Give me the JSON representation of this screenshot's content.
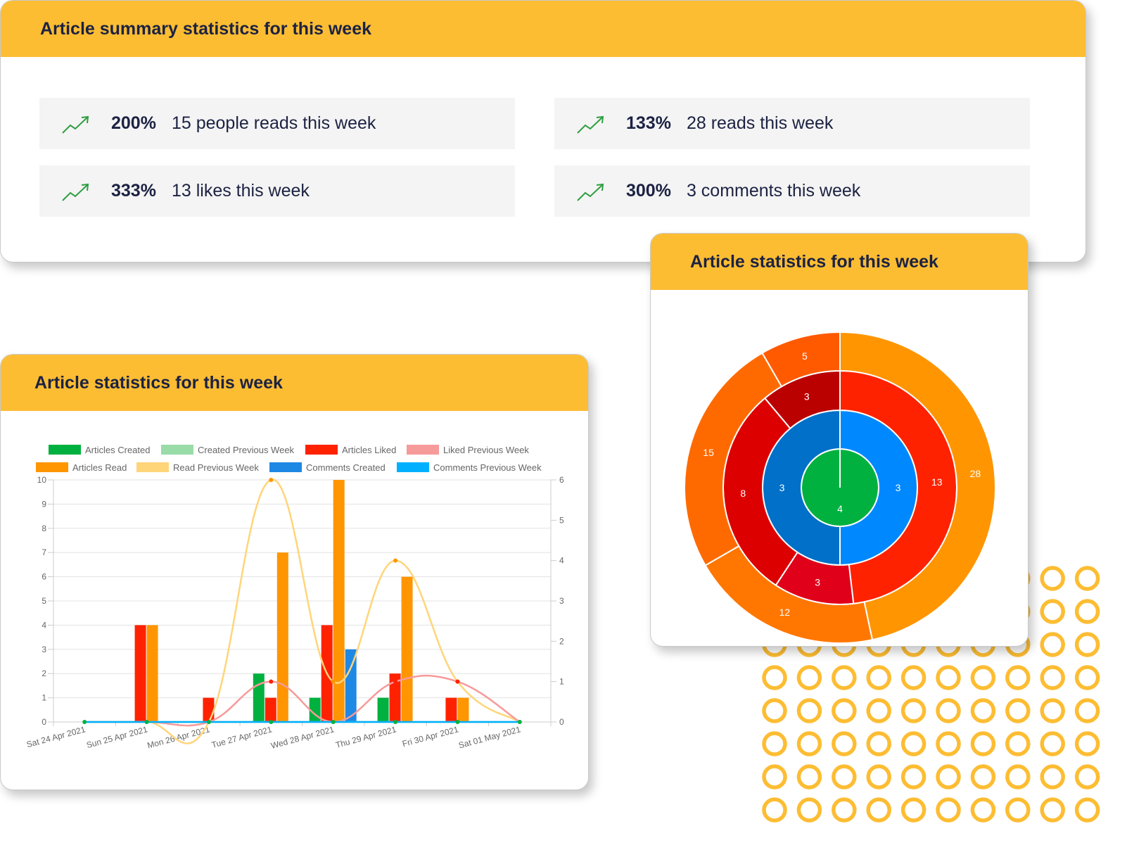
{
  "summary": {
    "title": "Article summary statistics for this week",
    "stats": [
      {
        "pct": "200%",
        "text": "15 people reads this week",
        "icon": "trend-up-icon"
      },
      {
        "pct": "133%",
        "text": "28 reads this week",
        "icon": "trend-up-icon"
      },
      {
        "pct": "333%",
        "text": "13 likes this week",
        "icon": "trend-up-icon"
      },
      {
        "pct": "300%",
        "text": "3 comments this week",
        "icon": "trend-up-icon"
      }
    ]
  },
  "bar_card": {
    "title": "Article statistics for this week"
  },
  "pie_card": {
    "title": "Article statistics for this week"
  },
  "colors": {
    "accent": "#FDBD33",
    "trend": "#2e9e3f",
    "text": "#1c2242"
  },
  "chart_data": [
    {
      "type": "bar",
      "categories": [
        "Sat 24 Apr 2021",
        "Sun 25 Apr 2021",
        "Mon 26 Apr 2021",
        "Tue 27 Apr 2021",
        "Wed 28 Apr 2021",
        "Thu 29 Apr 2021",
        "Fri 30 Apr 2021",
        "Sat 01 May 2021"
      ],
      "y_left": {
        "range": [
          0,
          10
        ],
        "ticks": [
          0,
          1,
          2,
          3,
          4,
          5,
          6,
          7,
          8,
          9,
          10
        ]
      },
      "y_right": {
        "range": [
          0,
          6
        ],
        "ticks": [
          0,
          1,
          2,
          3,
          4,
          5,
          6
        ]
      },
      "legend": "top",
      "grid": true,
      "series": [
        {
          "name": "Articles Created",
          "kind": "bar",
          "color": "#00b140",
          "values": [
            0,
            0,
            0,
            2,
            1,
            1,
            0,
            0
          ]
        },
        {
          "name": "Created Previous Week",
          "kind": "line",
          "axis": "right",
          "color": "#99dca7",
          "values": [
            0,
            0,
            0,
            0,
            0,
            0,
            0,
            0
          ]
        },
        {
          "name": "Articles Liked",
          "kind": "bar",
          "color": "#ff2200",
          "values": [
            0,
            4,
            1,
            1,
            4,
            2,
            1,
            0
          ]
        },
        {
          "name": "Liked Previous Week",
          "kind": "line",
          "axis": "right",
          "color": "#f79a9a",
          "values": [
            0,
            0,
            0,
            1,
            0,
            1,
            1,
            0
          ]
        },
        {
          "name": "Articles Read",
          "kind": "bar",
          "color": "#ff9500",
          "values": [
            0,
            4,
            0,
            7,
            10,
            6,
            1,
            0
          ]
        },
        {
          "name": "Read Previous Week",
          "kind": "line",
          "axis": "right",
          "color": "#ffd57a",
          "values": [
            0,
            0,
            0,
            6,
            1,
            4,
            1,
            0
          ]
        },
        {
          "name": "Comments Created",
          "kind": "bar",
          "color": "#1e88e5",
          "values": [
            0,
            0,
            0,
            0,
            3,
            0,
            0,
            0
          ]
        },
        {
          "name": "Comments Previous Week",
          "kind": "line",
          "axis": "right",
          "color": "#00b0ff",
          "values": [
            0,
            0,
            0,
            0,
            0,
            0,
            0,
            0
          ]
        }
      ]
    },
    {
      "type": "pie",
      "rings": [
        {
          "slices": [
            {
              "value": 4,
              "color": "#00b140"
            }
          ]
        },
        {
          "slices": [
            {
              "value": 3,
              "color": "#0088ff"
            },
            {
              "value": 3,
              "color": "#0070c9"
            }
          ]
        },
        {
          "slices": [
            {
              "value": 13,
              "color": "#ff2200"
            },
            {
              "value": 3,
              "color": "#e0001a"
            },
            {
              "value": 8,
              "color": "#dd0000"
            },
            {
              "value": 3,
              "color": "#bb0000"
            }
          ]
        },
        {
          "slices": [
            {
              "value": 28,
              "color": "#ff9500"
            },
            {
              "value": 12,
              "color": "#ff7700"
            },
            {
              "value": 15,
              "color": "#ff6a00"
            },
            {
              "value": 5,
              "color": "#ff5a00"
            }
          ]
        }
      ]
    }
  ]
}
